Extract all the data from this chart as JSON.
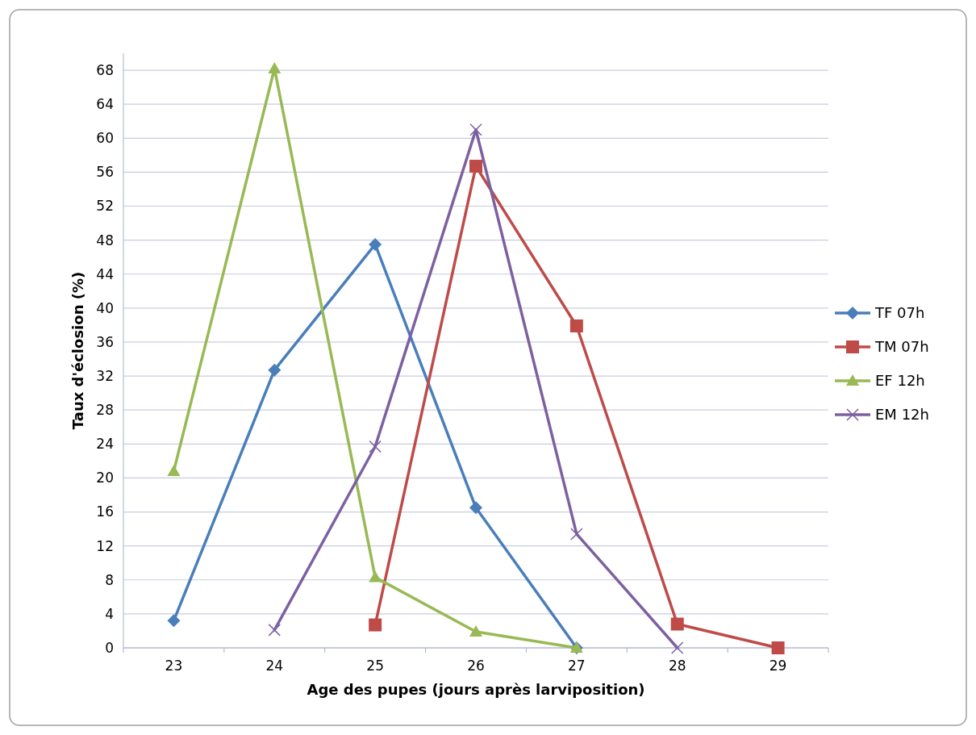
{
  "chart_data": {
    "type": "line",
    "xlabel": "Age des pupes (jours après larviposition)",
    "ylabel": "Taux d'éclosion (%)",
    "categories": [
      "23",
      "24",
      "25",
      "26",
      "27",
      "28",
      "29"
    ],
    "series": [
      {
        "name": "TF 07h",
        "color": "#4a7ebb",
        "marker": "diamond",
        "values": [
          3.2,
          32.7,
          47.5,
          16.5,
          0,
          null,
          null
        ]
      },
      {
        "name": "TM 07h",
        "color": "#be4b48",
        "marker": "square",
        "values": [
          null,
          null,
          2.7,
          56.7,
          37.9,
          2.8,
          0
        ]
      },
      {
        "name": "EF 12h",
        "color": "#98b954",
        "marker": "triangle",
        "values": [
          20.8,
          68.2,
          8.3,
          1.9,
          0,
          null,
          null
        ]
      },
      {
        "name": "EM 12h",
        "color": "#7d60a0",
        "marker": "cross",
        "values": [
          null,
          2.1,
          23.7,
          61,
          13.4,
          0,
          null
        ]
      }
    ],
    "ylim": [
      0,
      70
    ],
    "yticks": [
      0,
      4,
      8,
      12,
      16,
      20,
      24,
      28,
      32,
      36,
      40,
      44,
      48,
      52,
      56,
      60,
      64,
      68
    ],
    "grid": "y",
    "legend": "right",
    "line_style": "solid"
  }
}
